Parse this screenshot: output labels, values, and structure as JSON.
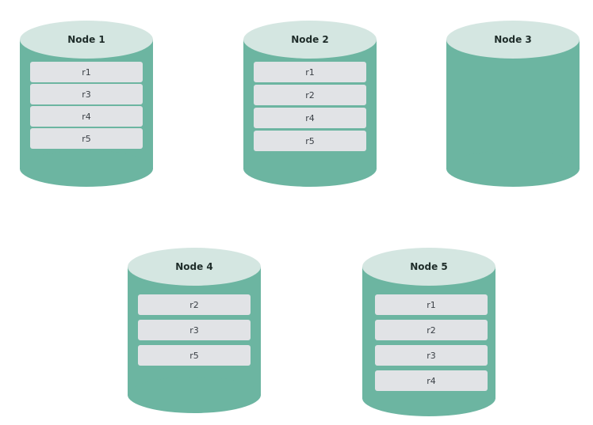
{
  "nodes": [
    {
      "name": "Node 1",
      "records": [
        "r1",
        "r3",
        "r4",
        "r5"
      ]
    },
    {
      "name": "Node 2",
      "records": [
        "r1",
        "r2",
        "r4",
        "r5"
      ]
    },
    {
      "name": "Node 3",
      "records": []
    },
    {
      "name": "Node 4",
      "records": [
        "r2",
        "r3",
        "r5"
      ]
    },
    {
      "name": "Node 5",
      "records": [
        "r1",
        "r2",
        "r3",
        "r4"
      ]
    }
  ],
  "colors": {
    "cylinder_body": "#6cb5a1",
    "cylinder_top": "#d4e6e1",
    "record_box": "#e1e3e6"
  }
}
